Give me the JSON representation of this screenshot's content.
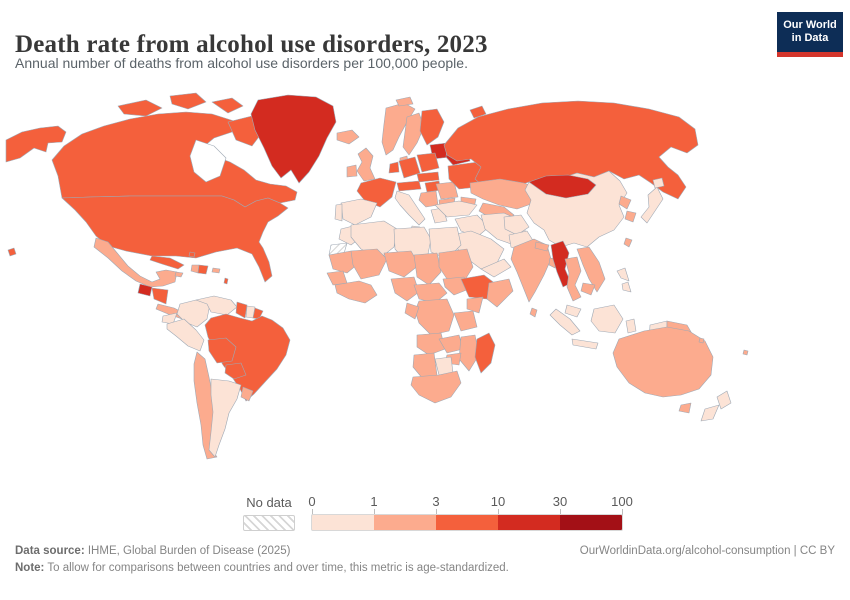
{
  "header": {
    "title": "Death rate from alcohol use disorders, 2023",
    "subtitle": "Annual number of deaths from alcohol use disorders per 100,000 people.",
    "logo": {
      "line1": "Our World",
      "line2": "in Data",
      "bg_color": "#0d2d56",
      "bar_color": "#d4352c"
    }
  },
  "legend": {
    "no_data_label": "No data",
    "ticks": [
      "0",
      "1",
      "3",
      "10",
      "30",
      "100"
    ],
    "bins": [
      {
        "range": "0-1",
        "color": "#fce3d6"
      },
      {
        "range": "1-3",
        "color": "#fcab8e"
      },
      {
        "range": "3-10",
        "color": "#f4603c"
      },
      {
        "range": "10-30",
        "color": "#d32b20"
      },
      {
        "range": "30-100",
        "color": "#a31016"
      }
    ]
  },
  "footer": {
    "source_label": "Data source:",
    "source_text": " IHME, Global Burden of Disease (2025)",
    "link_text": "OurWorldinData.org/alcohol-consumption | CC BY",
    "note_label": "Note:",
    "note_text": " To allow for comparisons between countries and over time, this metric is age-standardized."
  },
  "map": {
    "border_color": "#9fa9b5",
    "ocean_color": "#ffffff",
    "countries": [
      {
        "name": "alaska",
        "bin": 2
      },
      {
        "name": "canada",
        "bin": 2
      },
      {
        "name": "hudson-bay",
        "bin": "water"
      },
      {
        "name": "canada-arctic-1",
        "bin": 2
      },
      {
        "name": "canada-arctic-2",
        "bin": 2
      },
      {
        "name": "canada-arctic-3",
        "bin": 2
      },
      {
        "name": "baffin-island",
        "bin": 2
      },
      {
        "name": "greenland",
        "bin": 3
      },
      {
        "name": "iceland",
        "bin": 1
      },
      {
        "name": "united-states",
        "bin": 2
      },
      {
        "name": "hawaii",
        "bin": 2
      },
      {
        "name": "mexico",
        "bin": 1
      },
      {
        "name": "guatemala",
        "bin": 3
      },
      {
        "name": "honduras-nicaragua",
        "bin": 2
      },
      {
        "name": "costa-rica-panama",
        "bin": 1
      },
      {
        "name": "cuba",
        "bin": 2
      },
      {
        "name": "haiti",
        "bin": 1
      },
      {
        "name": "dominican-republic",
        "bin": 2
      },
      {
        "name": "jamaica",
        "bin": 1
      },
      {
        "name": "puerto-rico",
        "bin": 1
      },
      {
        "name": "bahamas",
        "bin": 2
      },
      {
        "name": "lesser-antilles",
        "bin": 2
      },
      {
        "name": "colombia",
        "bin": 0
      },
      {
        "name": "venezuela",
        "bin": 0
      },
      {
        "name": "guyana",
        "bin": 2
      },
      {
        "name": "suriname",
        "bin": 0
      },
      {
        "name": "french-guiana",
        "bin": 2
      },
      {
        "name": "brazil",
        "bin": 2
      },
      {
        "name": "ecuador",
        "bin": 0
      },
      {
        "name": "peru",
        "bin": 0
      },
      {
        "name": "bolivia",
        "bin": 2
      },
      {
        "name": "paraguay",
        "bin": 2
      },
      {
        "name": "chile",
        "bin": 1
      },
      {
        "name": "argentina",
        "bin": 0
      },
      {
        "name": "uruguay",
        "bin": 1
      },
      {
        "name": "united-kingdom",
        "bin": 1
      },
      {
        "name": "ireland",
        "bin": 1
      },
      {
        "name": "norway",
        "bin": 1
      },
      {
        "name": "sweden",
        "bin": 1
      },
      {
        "name": "finland",
        "bin": 2
      },
      {
        "name": "denmark",
        "bin": 1
      },
      {
        "name": "baltic-states",
        "bin": 3
      },
      {
        "name": "belarus",
        "bin": 3
      },
      {
        "name": "poland",
        "bin": 2
      },
      {
        "name": "germany",
        "bin": 2
      },
      {
        "name": "benelux",
        "bin": 2
      },
      {
        "name": "france",
        "bin": 2
      },
      {
        "name": "spain",
        "bin": 0
      },
      {
        "name": "portugal",
        "bin": 0
      },
      {
        "name": "italy",
        "bin": 0
      },
      {
        "name": "sicily",
        "bin": 0
      },
      {
        "name": "switzerland-austria",
        "bin": 2
      },
      {
        "name": "czechia-slovakia",
        "bin": 2
      },
      {
        "name": "hungary",
        "bin": 2
      },
      {
        "name": "balkans",
        "bin": 1
      },
      {
        "name": "romania",
        "bin": 1
      },
      {
        "name": "bulgaria",
        "bin": 1
      },
      {
        "name": "greece",
        "bin": 0
      },
      {
        "name": "ukraine",
        "bin": 2
      },
      {
        "name": "russia",
        "bin": 2
      },
      {
        "name": "svalbard",
        "bin": 1
      },
      {
        "name": "novaya-zemlya",
        "bin": 2
      },
      {
        "name": "kazakhstan",
        "bin": 1
      },
      {
        "name": "central-asia",
        "bin": 1
      },
      {
        "name": "caucasus",
        "bin": 1
      },
      {
        "name": "turkey",
        "bin": 0
      },
      {
        "name": "syria-iraq",
        "bin": 0
      },
      {
        "name": "iran",
        "bin": 0
      },
      {
        "name": "saudi-arabia",
        "bin": 0
      },
      {
        "name": "yemen-oman",
        "bin": 0
      },
      {
        "name": "afghanistan",
        "bin": 0
      },
      {
        "name": "pakistan",
        "bin": 0
      },
      {
        "name": "india",
        "bin": 1
      },
      {
        "name": "nepal",
        "bin": 1
      },
      {
        "name": "bangladesh",
        "bin": 1
      },
      {
        "name": "sri-lanka",
        "bin": 1
      },
      {
        "name": "china",
        "bin": 0
      },
      {
        "name": "mongolia",
        "bin": 3
      },
      {
        "name": "north-korea",
        "bin": 1
      },
      {
        "name": "south-korea",
        "bin": 1
      },
      {
        "name": "japan",
        "bin": 0
      },
      {
        "name": "hokkaido",
        "bin": 0
      },
      {
        "name": "taiwan",
        "bin": 1
      },
      {
        "name": "myanmar",
        "bin": 3
      },
      {
        "name": "thailand",
        "bin": 1
      },
      {
        "name": "laos-vietnam",
        "bin": 1
      },
      {
        "name": "cambodia",
        "bin": 1
      },
      {
        "name": "malaysia",
        "bin": 0
      },
      {
        "name": "sumatra",
        "bin": 0
      },
      {
        "name": "java",
        "bin": 0
      },
      {
        "name": "borneo",
        "bin": 0
      },
      {
        "name": "sulawesi",
        "bin": 0
      },
      {
        "name": "west-new-guinea",
        "bin": 0
      },
      {
        "name": "papua-new-guinea",
        "bin": 1
      },
      {
        "name": "philippines-north",
        "bin": 0
      },
      {
        "name": "philippines-south",
        "bin": 0
      },
      {
        "name": "morocco",
        "bin": 0
      },
      {
        "name": "western-sahara",
        "bin": "nodata"
      },
      {
        "name": "algeria",
        "bin": 0
      },
      {
        "name": "libya",
        "bin": 0
      },
      {
        "name": "egypt",
        "bin": 0
      },
      {
        "name": "mauritania",
        "bin": 1
      },
      {
        "name": "mali",
        "bin": 1
      },
      {
        "name": "niger",
        "bin": 1
      },
      {
        "name": "chad",
        "bin": 1
      },
      {
        "name": "sudan",
        "bin": 1
      },
      {
        "name": "senegal-guinea",
        "bin": 1
      },
      {
        "name": "west-africa-coast",
        "bin": 1
      },
      {
        "name": "nigeria",
        "bin": 1
      },
      {
        "name": "cameroon-car",
        "bin": 1
      },
      {
        "name": "south-sudan",
        "bin": 1
      },
      {
        "name": "ethiopia",
        "bin": 2
      },
      {
        "name": "somalia",
        "bin": 1
      },
      {
        "name": "kenya",
        "bin": 1
      },
      {
        "name": "dr-congo",
        "bin": 1
      },
      {
        "name": "gabon-congo",
        "bin": 1
      },
      {
        "name": "tanzania",
        "bin": 1
      },
      {
        "name": "angola",
        "bin": 1
      },
      {
        "name": "zambia",
        "bin": 1
      },
      {
        "name": "mozambique",
        "bin": 1
      },
      {
        "name": "zimbabwe",
        "bin": 1
      },
      {
        "name": "namibia",
        "bin": 1
      },
      {
        "name": "botswana",
        "bin": 0
      },
      {
        "name": "south-africa",
        "bin": 1
      },
      {
        "name": "madagascar",
        "bin": 2
      },
      {
        "name": "australia",
        "bin": 1
      },
      {
        "name": "tasmania",
        "bin": 1
      },
      {
        "name": "new-zealand-north",
        "bin": 0
      },
      {
        "name": "new-zealand-south",
        "bin": 0
      },
      {
        "name": "fiji",
        "bin": 1
      },
      {
        "name": "solomon-islands",
        "bin": 1
      }
    ]
  }
}
